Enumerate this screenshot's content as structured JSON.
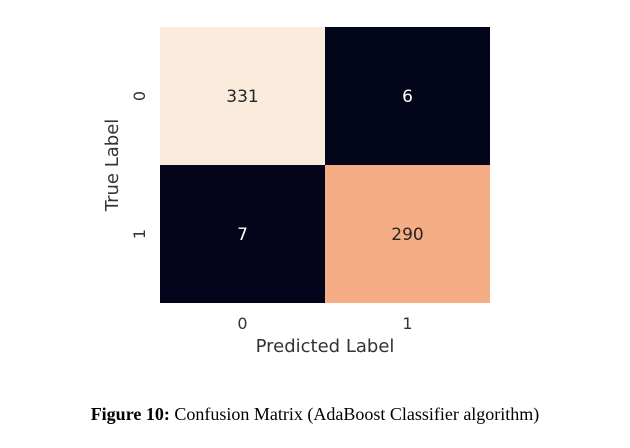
{
  "chart_data": {
    "type": "heatmap",
    "x_categories": [
      "0",
      "1"
    ],
    "y_categories": [
      "0",
      "1"
    ],
    "values": [
      [
        331,
        6
      ],
      [
        7,
        290
      ]
    ],
    "cell_labels": [
      [
        "331",
        "6"
      ],
      [
        "7",
        "290"
      ]
    ],
    "xlabel": "Predicted Label",
    "ylabel": "True Label",
    "colormap": "rocket",
    "low_color": "#03051a",
    "high_color": "#faebdd",
    "colorbar": false
  },
  "caption": {
    "prefix": "Figure 10:",
    "text": " Confusion Matrix (AdaBoost Classifier algorithm)"
  }
}
